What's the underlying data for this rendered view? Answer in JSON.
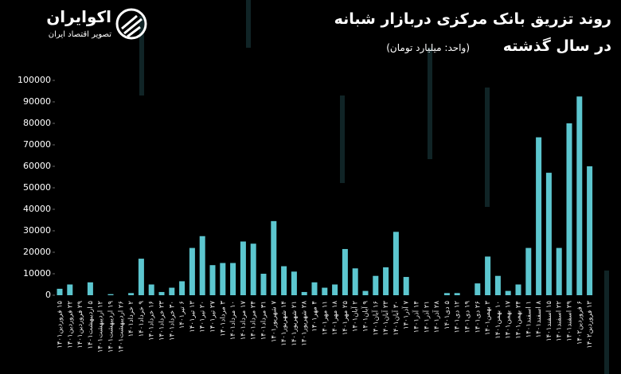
{
  "logo": {
    "name": "اکوایران",
    "tagline": "تصویر اقتصاد ایران"
  },
  "chart_data": {
    "type": "bar",
    "title": [
      "روند تزریق بانک مرکزی دربازار شبانه",
      "در سال گذشته"
    ],
    "subtitle": "(واحد: میلیارد تومان)",
    "color": "#5cc6cf",
    "categories": [
      "۱۵ فروردین۱۴۰۱",
      "۲۲ فروردین۱۴۰۱",
      "۲۹ فروردین۱۴۰۱",
      "۵ اردیبهشت۱۴۰۱",
      "۱۲ اردیبهشت۱۴۰۱",
      "۱۹ اردیبهشت۱۴۰۱",
      "۲۶ اردیبهشت۱۴۰۱",
      "۲ خرداد۱۴۰۱",
      "۹ خرداد۱۴۰۱",
      "۱۶ خرداد۱۴۰۱",
      "۲۳ خرداد۱۴۰۱",
      "۳۰ خرداد۱۴۰۱",
      "۶ تیر۱۴۰۱",
      "۱۳ تیر۱۴۰۱",
      "۲۰ تیر۱۴۰۱",
      "۲۷ تیر۱۴۰۱",
      "۳ مرداد۱۴۰۱",
      "۱۰ مرداد۱۴۰۱",
      "۱۷ مرداد۱۴۰۱",
      "۲۴ مرداد۱۴۰۱",
      "۳۱ مرداد۱۴۰۱",
      "۷ شهریور۱۴۰۱",
      "۱۴ شهریور۱۴۰۱",
      "۲۱ شهریور۱۴۰۱",
      "۲۸ شهریور۱۴۰۱",
      "۴ مهر۱۴۰۱",
      "۱۱ مهر۱۴۰۱",
      "۱۸ مهر۱۴۰۱",
      "۲۵ مهر۱۴۰۱",
      "۲ آبان۱۴۰۱",
      "۹ آبان۱۴۰۱",
      "۱۶ آبان۱۴۰۱",
      "۲۳ آبان۱۴۰۱",
      "۳۰ آبان۱۴۰۱",
      "۷ آذر۱۴۰۱",
      "۱۴ آذر۱۴۰۱",
      "۲۱ آذر۱۴۰۱",
      "۲۸ آذر۱۴۰۱",
      "۵ دی۱۴۰۱",
      "۱۲ دی۱۴۰۱",
      "۱۹ دی۱۴۰۱",
      "۲۶ دی۱۴۰۱",
      "۳ بهمن۱۴۰۱",
      "۱۰ بهمن۱۴۰۱",
      "۱۷ بهمن۱۴۰۱",
      "۲۴ بهمن۱۴۰۱",
      "۱ اسفند۱۴۰۱",
      "۸ اسفند۱۴۰۱",
      "۱۵ اسفند۱۴۰۱",
      "۲۲ اسفند۱۴۰۱",
      "۲۹ اسفند۱۴۰۱",
      "۶ فروردین۱۴۰۲",
      "۱۳ فروردین۱۴۰۲"
    ],
    "values": [
      3000,
      5000,
      0,
      6000,
      0,
      500,
      0,
      1000,
      17000,
      5000,
      1500,
      3500,
      6500,
      22000,
      27500,
      14000,
      15000,
      15000,
      25000,
      24000,
      10000,
      34500,
      13500,
      11000,
      1500,
      6000,
      3500,
      5000,
      21500,
      12500,
      2000,
      9000,
      13000,
      29500,
      8500,
      0,
      0,
      0,
      1000,
      1000,
      0,
      5500,
      18000,
      9000,
      2000,
      5000,
      22000,
      73500,
      57000,
      22000,
      80000,
      92500,
      60000
    ],
    "ylim": [
      0,
      100000
    ],
    "yticks": [
      0,
      10000,
      20000,
      30000,
      40000,
      50000,
      60000,
      70000,
      80000,
      90000,
      100000
    ],
    "grid": false
  }
}
